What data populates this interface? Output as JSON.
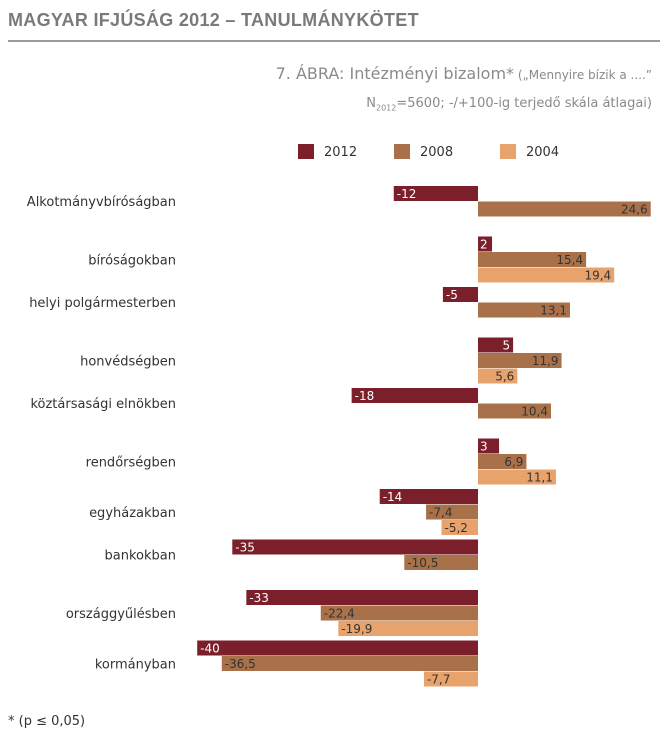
{
  "header": {
    "title": "MAGYAR IFJÚSÁG 2012 – TANULMÁNYKÖTET"
  },
  "figure": {
    "title_main": "7. ÁBRA: Intézményi bizalom*",
    "title_question": " („Mennyire bízik a ....”",
    "subtitle_n": "N",
    "subtitle_n_sub": "2012",
    "subtitle_rest": "=5600; -/+100-ig terjedő skála átlagai)"
  },
  "footnote": "* (p ≤ 0,05)",
  "chart_data": {
    "type": "bar",
    "orientation": "horizontal",
    "categories": [
      "Alkotmányvbíróságban",
      "bíróságokban",
      "helyi polgármesterben",
      "honvédségben",
      "köztársasági elnökben",
      "rendőrségben",
      "egyházakban",
      "bankokban",
      "országgyűlésben",
      "kormányban"
    ],
    "series": [
      {
        "name": "2012",
        "color": "#7b1f2b",
        "values": [
          -12,
          2,
          -5,
          5,
          -18,
          3,
          -14,
          -35,
          -33,
          -40
        ],
        "labels": [
          "-12",
          "2",
          "-5",
          "5",
          "-18",
          "3",
          "-14",
          "-35",
          "-33",
          "-40"
        ]
      },
      {
        "name": "2008",
        "color": "#a9714a",
        "values": [
          24.6,
          15.4,
          13.1,
          11.9,
          10.4,
          6.9,
          -7.4,
          -10.5,
          -22.4,
          -36.5
        ],
        "labels": [
          "24,6",
          "15,4",
          "13,1",
          "11,9",
          "10,4",
          "6,9",
          "-7,4",
          "-10,5",
          "-22,4",
          "-36,5"
        ]
      },
      {
        "name": "2004",
        "color": "#e8a36d",
        "values": [
          null,
          19.4,
          null,
          5.6,
          null,
          11.1,
          -5.2,
          null,
          -19.9,
          -7.7
        ],
        "labels": [
          null,
          "19,4",
          null,
          "5,6",
          null,
          "11,1",
          "-5,2",
          null,
          "-19,9",
          "-7,7"
        ]
      }
    ],
    "legend_position": "top",
    "grid": false
  }
}
